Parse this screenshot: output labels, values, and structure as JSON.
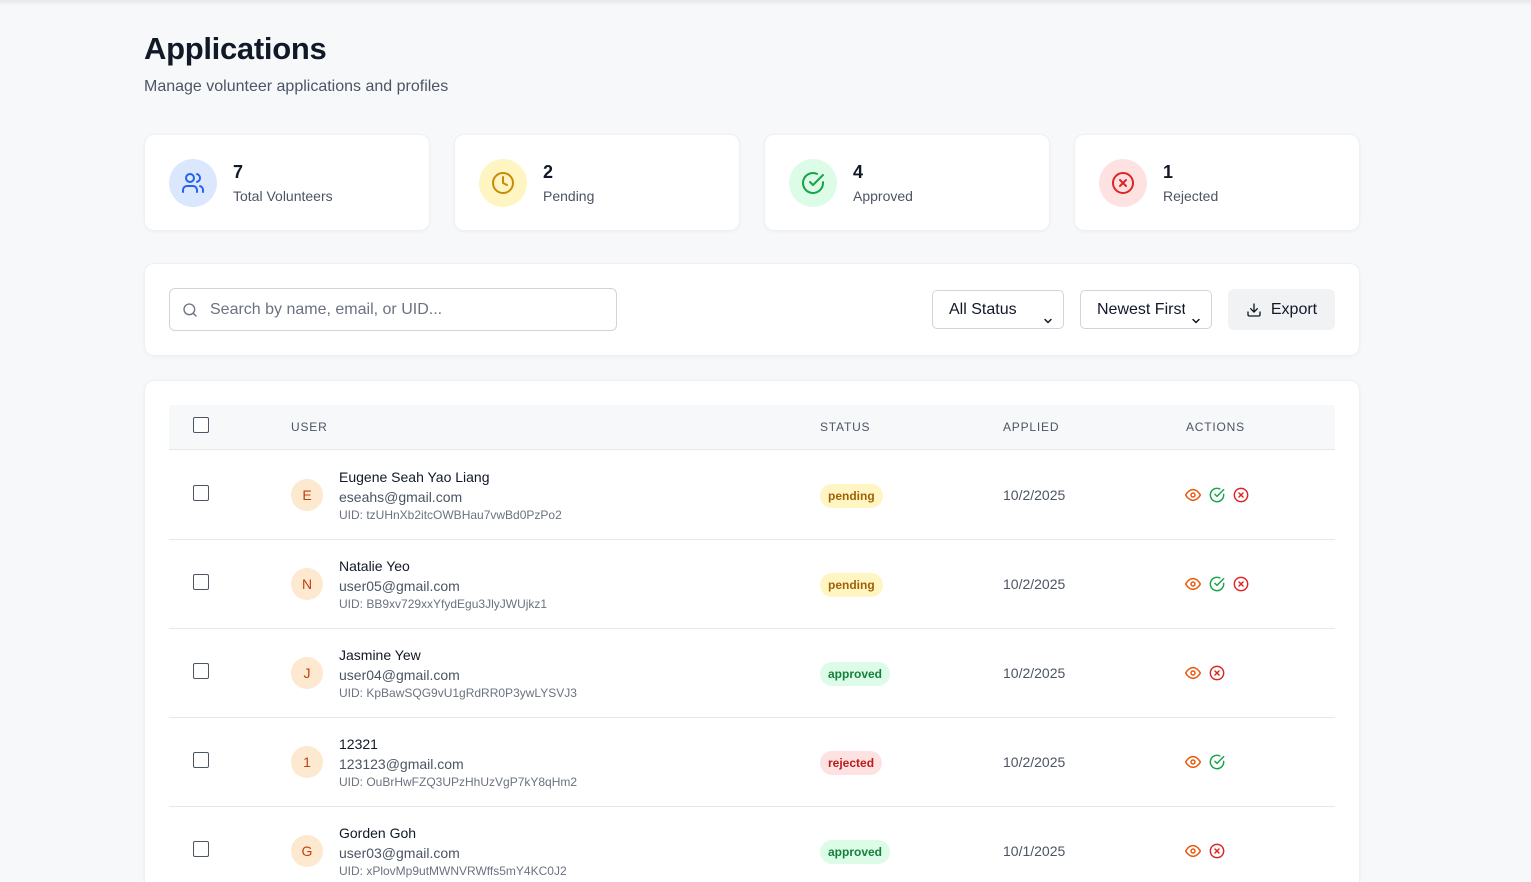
{
  "page": {
    "title": "Applications",
    "subtitle": "Manage volunteer applications and profiles"
  },
  "stats": [
    {
      "value": "7",
      "label": "Total Volunteers",
      "icon": "users-icon",
      "bg": "#dbe7fd",
      "fg": "#2563eb"
    },
    {
      "value": "2",
      "label": "Pending",
      "icon": "clock-icon",
      "bg": "#fef5c3",
      "fg": "#ca8a04"
    },
    {
      "value": "4",
      "label": "Approved",
      "icon": "check-circle-icon",
      "bg": "#dcfce7",
      "fg": "#16a34a"
    },
    {
      "value": "1",
      "label": "Rejected",
      "icon": "x-circle-icon",
      "bg": "#fee2e2",
      "fg": "#dc2626"
    }
  ],
  "toolbar": {
    "search_placeholder": "Search by name, email, or UID...",
    "search_value": "",
    "status_filter": "All Status",
    "sort_order": "Newest First",
    "export_label": "Export"
  },
  "table": {
    "headers": {
      "user": "USER",
      "status": "STATUS",
      "applied": "APPLIED",
      "actions": "ACTIONS"
    },
    "rows": [
      {
        "initial": "E",
        "name": "Eugene Seah Yao Liang",
        "email": "eseahs@gmail.com",
        "uid": "UID: tzUHnXb2itcOWBHau7vwBd0PzPo2",
        "status": "pending",
        "applied": "10/2/2025",
        "actions": [
          "view",
          "approve",
          "reject"
        ]
      },
      {
        "initial": "N",
        "name": "Natalie Yeo",
        "email": "user05@gmail.com",
        "uid": "UID: BB9xv729xxYfydEgu3JlyJWUjkz1",
        "status": "pending",
        "applied": "10/2/2025",
        "actions": [
          "view",
          "approve",
          "reject"
        ]
      },
      {
        "initial": "J",
        "name": "Jasmine Yew",
        "email": "user04@gmail.com",
        "uid": "UID: KpBawSQG9vU1gRdRR0P3ywLYSVJ3",
        "status": "approved",
        "applied": "10/2/2025",
        "actions": [
          "view",
          "reject"
        ]
      },
      {
        "initial": "1",
        "name": "12321",
        "email": "123123@gmail.com",
        "uid": "UID: OuBrHwFZQ3UPzHhUzVgP7kY8qHm2",
        "status": "rejected",
        "applied": "10/2/2025",
        "actions": [
          "view",
          "approve"
        ]
      },
      {
        "initial": "G",
        "name": "Gorden Goh",
        "email": "user03@gmail.com",
        "uid": "UID: xPlovMp9utMWNVRWffs5mY4KC0J2",
        "status": "approved",
        "applied": "10/1/2025",
        "actions": [
          "view",
          "reject"
        ]
      }
    ]
  },
  "colors": {
    "view_action": "#ea580c",
    "approve_action": "#16a34a",
    "reject_action": "#dc2626"
  }
}
